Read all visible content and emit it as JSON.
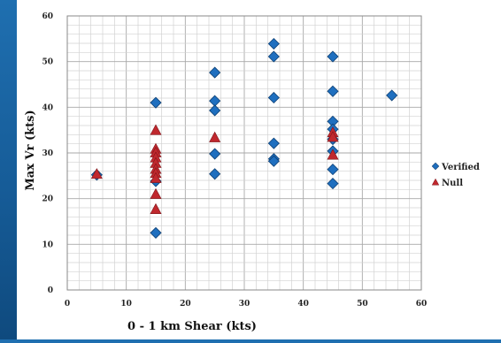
{
  "chart_data": {
    "type": "scatter",
    "xlabel": "0 - 1 km Shear (kts)",
    "ylabel": "Max Vr (kts)",
    "xlim": [
      0,
      60
    ],
    "ylim": [
      0,
      60
    ],
    "x_ticks": [
      "0",
      "10",
      "20",
      "30",
      "40",
      "50",
      "60"
    ],
    "y_ticks": [
      "0",
      "10",
      "20",
      "30",
      "40",
      "50",
      "60"
    ],
    "grid": true,
    "legend_position": "right",
    "series": [
      {
        "name": "Verified",
        "marker": "diamond",
        "color": "#1f6fbf",
        "points": [
          [
            5,
            25.2
          ],
          [
            15,
            41
          ],
          [
            15,
            23.8
          ],
          [
            15,
            12.5
          ],
          [
            25,
            47.6
          ],
          [
            25,
            41.4
          ],
          [
            25,
            39.3
          ],
          [
            25,
            29.8
          ],
          [
            25,
            25.4
          ],
          [
            35,
            53.9
          ],
          [
            35,
            51.1
          ],
          [
            35,
            42.1
          ],
          [
            35,
            32.1
          ],
          [
            35,
            28.7
          ],
          [
            35,
            28.2
          ],
          [
            45,
            51.1
          ],
          [
            45,
            43.5
          ],
          [
            45,
            36.9
          ],
          [
            45,
            35.2
          ],
          [
            45,
            33
          ],
          [
            45,
            30.4
          ],
          [
            45,
            26.4
          ],
          [
            45,
            23.3
          ],
          [
            55,
            42.6
          ]
        ]
      },
      {
        "name": "Null",
        "marker": "triangle",
        "color": "#c0282e",
        "points": [
          [
            5,
            25.4
          ],
          [
            15,
            35
          ],
          [
            15,
            30.9
          ],
          [
            15,
            30.1
          ],
          [
            15,
            29
          ],
          [
            15,
            27.8
          ],
          [
            15,
            26.5
          ],
          [
            15,
            25.6
          ],
          [
            15,
            24.5
          ],
          [
            15,
            21
          ],
          [
            15,
            17.7
          ],
          [
            25,
            33.4
          ],
          [
            45,
            34.5
          ],
          [
            45,
            33.5
          ],
          [
            45,
            29.6
          ]
        ]
      }
    ]
  }
}
